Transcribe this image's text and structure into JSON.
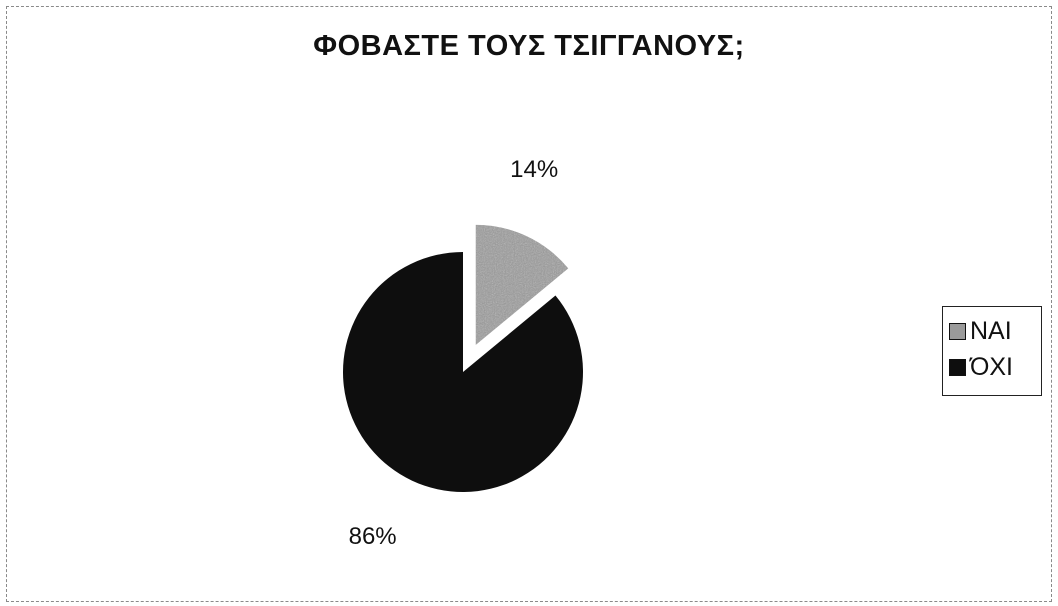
{
  "chart_data": {
    "type": "pie",
    "title": "ΦΟΒΑΣΤΕ ΤΟΥΣ ΤΣΙΓΓΑΝΟΥΣ;",
    "categories": [
      "NAI",
      "ΌΧΙ"
    ],
    "values": [
      14,
      86
    ],
    "data_labels": [
      "14%",
      "86%"
    ],
    "colors": [
      "#9a9a9a",
      "#0e0e0e"
    ],
    "exploded_slice": "NAI",
    "legend_placement": "right"
  }
}
